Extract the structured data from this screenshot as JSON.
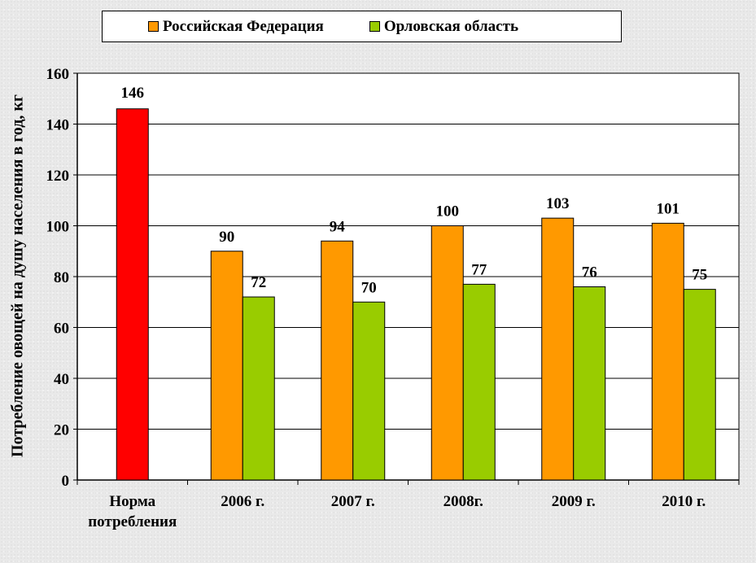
{
  "chart_data": {
    "type": "bar",
    "categories": [
      "Норма\nпотребления",
      "2006 г.",
      "2007 г.",
      "2008г.",
      "2009 г.",
      "2010 г."
    ],
    "series": [
      {
        "name": "Российская Федерация",
        "color": "#ff9900",
        "values": [
          null,
          90,
          94,
          100,
          103,
          101
        ]
      },
      {
        "name": "Орловская область",
        "color": "#99cc00",
        "values": [
          null,
          72,
          70,
          77,
          76,
          75
        ]
      }
    ],
    "norm": {
      "value": 146,
      "color": "#ff0000"
    },
    "ylabel": "Потребление овощей на душу населения  в год, кг",
    "xlabel": "",
    "ylim": [
      0,
      160
    ],
    "yticks": [
      0,
      20,
      40,
      60,
      80,
      100,
      120,
      140,
      160
    ],
    "grid": true,
    "legend_position": "top"
  }
}
